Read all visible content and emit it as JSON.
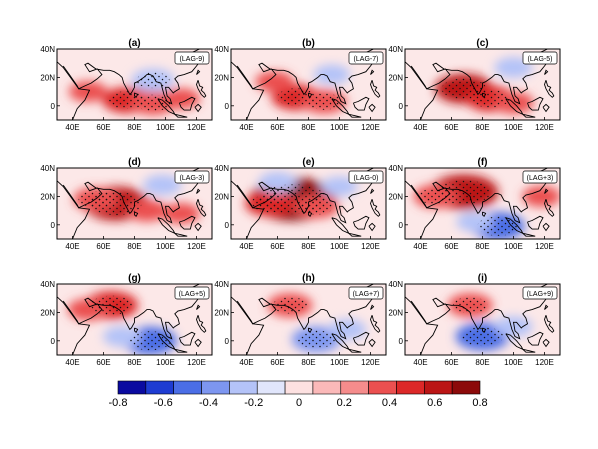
{
  "chart_data": {
    "type": "heatmap",
    "colorbar": {
      "colors": [
        "#0a0aa0",
        "#1e3cd2",
        "#4b6ee6",
        "#7d96f0",
        "#b4c3f8",
        "#e1e6fc",
        "#fde1e1",
        "#fbb9b9",
        "#f58c8c",
        "#eb5050",
        "#dc2828",
        "#bb1515",
        "#8c0a0a"
      ],
      "tick_values": [
        -0.8,
        -0.6,
        -0.4,
        -0.2,
        0,
        0.2,
        0.4,
        0.6,
        0.8
      ],
      "tick_labels": [
        "-0.8",
        "-0.6",
        "-0.4",
        "-0.2",
        "0",
        "0.2",
        "0.4",
        "0.6",
        "0.8"
      ]
    },
    "map_extent": {
      "lon": [
        30,
        130
      ],
      "lat": [
        -10,
        40
      ]
    },
    "lon_ticks": [
      "40E",
      "60E",
      "80E",
      "100E",
      "120E"
    ],
    "lat_ticks": [
      "40N",
      "20N",
      "0"
    ],
    "panels": [
      {
        "letter": "(a)",
        "lag": "(LAG-9)",
        "blobs": [
          {
            "lon": 75,
            "lat": 4,
            "value": 0.35
          },
          {
            "lon": 92,
            "lat": 2,
            "value": 0.3
          },
          {
            "lon": 50,
            "lat": 10,
            "value": 0.22
          },
          {
            "lon": 92,
            "lat": 18,
            "value": -0.28
          },
          {
            "lon": 110,
            "lat": 5,
            "value": 0.22
          }
        ]
      },
      {
        "letter": "(b)",
        "lag": "(LAG-7)",
        "blobs": [
          {
            "lon": 72,
            "lat": 6,
            "value": 0.35
          },
          {
            "lon": 90,
            "lat": 3,
            "value": 0.3
          },
          {
            "lon": 58,
            "lat": 17,
            "value": 0.22
          },
          {
            "lon": 95,
            "lat": 22,
            "value": -0.2
          }
        ]
      },
      {
        "letter": "(c)",
        "lag": "(LAG-5)",
        "blobs": [
          {
            "lon": 68,
            "lat": 12,
            "value": 0.45
          },
          {
            "lon": 85,
            "lat": 5,
            "value": 0.35
          },
          {
            "lon": 100,
            "lat": 2,
            "value": 0.25
          },
          {
            "lon": 100,
            "lat": 27,
            "value": -0.22
          }
        ]
      },
      {
        "letter": "(d)",
        "lag": "(LAG-3)",
        "blobs": [
          {
            "lon": 68,
            "lat": 15,
            "value": 0.55
          },
          {
            "lon": 55,
            "lat": 18,
            "value": 0.3
          },
          {
            "lon": 88,
            "lat": 10,
            "value": 0.25
          },
          {
            "lon": 110,
            "lat": 8,
            "value": 0.22
          },
          {
            "lon": 98,
            "lat": 28,
            "value": -0.22
          }
        ]
      },
      {
        "letter": "(e)",
        "lag": "(LAG-0)",
        "blobs": [
          {
            "lon": 70,
            "lat": 18,
            "value": 0.78
          },
          {
            "lon": 55,
            "lat": 15,
            "value": 0.35
          },
          {
            "lon": 85,
            "lat": 13,
            "value": 0.3
          },
          {
            "lon": 100,
            "lat": 27,
            "value": -0.2
          },
          {
            "lon": 60,
            "lat": 30,
            "value": -0.22
          }
        ]
      },
      {
        "letter": "(f)",
        "lag": "(LAG+3)",
        "blobs": [
          {
            "lon": 68,
            "lat": 23,
            "value": 0.58
          },
          {
            "lon": 50,
            "lat": 20,
            "value": 0.3
          },
          {
            "lon": 90,
            "lat": -1,
            "value": -0.4
          },
          {
            "lon": 75,
            "lat": 2,
            "value": -0.2
          },
          {
            "lon": 118,
            "lat": 20,
            "value": 0.22
          }
        ]
      },
      {
        "letter": "(g)",
        "lag": "(LAG+5)",
        "blobs": [
          {
            "lon": 65,
            "lat": 25,
            "value": 0.4
          },
          {
            "lon": 50,
            "lat": 22,
            "value": 0.25
          },
          {
            "lon": 90,
            "lat": 0,
            "value": -0.4
          },
          {
            "lon": 72,
            "lat": 3,
            "value": -0.22
          }
        ]
      },
      {
        "letter": "(h)",
        "lag": "(LAG+7)",
        "blobs": [
          {
            "lon": 68,
            "lat": 25,
            "value": 0.3
          },
          {
            "lon": 85,
            "lat": 1,
            "value": -0.35
          },
          {
            "lon": 105,
            "lat": 8,
            "value": -0.22
          }
        ]
      },
      {
        "letter": "(i)",
        "lag": "(LAG+9)",
        "blobs": [
          {
            "lon": 72,
            "lat": 25,
            "value": 0.3
          },
          {
            "lon": 80,
            "lat": 3,
            "value": -0.4
          },
          {
            "lon": 100,
            "lat": 10,
            "value": -0.22
          }
        ]
      }
    ]
  }
}
